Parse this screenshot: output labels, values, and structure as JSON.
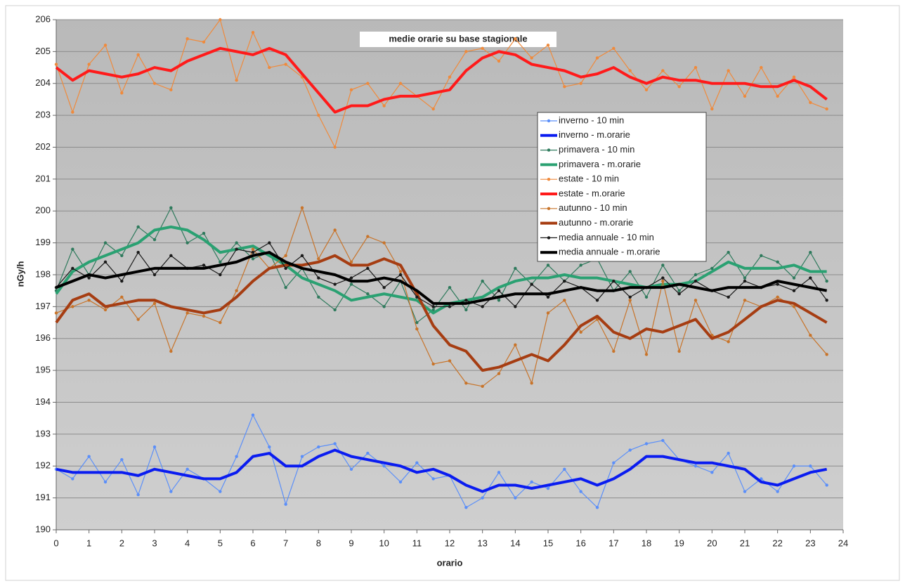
{
  "chart_data": {
    "type": "line",
    "title": "medie orarie su base stagionale",
    "xlabel": "orario",
    "ylabel": "nGy/h",
    "x": [
      0,
      0.5,
      1,
      1.5,
      2,
      2.5,
      3,
      3.5,
      4,
      4.5,
      5,
      5.5,
      6,
      6.5,
      7,
      7.5,
      8,
      8.5,
      9,
      9.5,
      10,
      10.5,
      11,
      11.5,
      12,
      12.5,
      13,
      13.5,
      14,
      14.5,
      15,
      15.5,
      16,
      16.5,
      17,
      17.5,
      18,
      18.5,
      19,
      19.5,
      20,
      20.5,
      21,
      21.5,
      22,
      22.5,
      23,
      23.5
    ],
    "xlim": [
      0,
      24
    ],
    "xticks": [
      0,
      1,
      2,
      3,
      4,
      5,
      6,
      7,
      8,
      9,
      10,
      11,
      12,
      13,
      14,
      15,
      16,
      17,
      18,
      19,
      20,
      21,
      22,
      23,
      24
    ],
    "ylim": [
      190,
      206
    ],
    "yticks": [
      190,
      191,
      192,
      193,
      194,
      195,
      196,
      197,
      198,
      199,
      200,
      201,
      202,
      203,
      204,
      205,
      206
    ],
    "grid": true,
    "series": [
      {
        "name": "inverno - 10 min",
        "color": "#5b8ff9",
        "markers": true,
        "values": [
          191.9,
          191.6,
          192.3,
          191.5,
          192.2,
          191.1,
          192.6,
          191.2,
          191.9,
          191.6,
          191.2,
          192.3,
          193.6,
          192.6,
          190.8,
          192.3,
          192.6,
          192.7,
          191.9,
          192.4,
          192.0,
          191.5,
          192.1,
          191.6,
          191.7,
          190.7,
          191.0,
          191.8,
          191.0,
          191.5,
          191.3,
          191.9,
          191.2,
          190.7,
          192.1,
          192.5,
          192.7,
          192.8,
          192.2,
          192.0,
          191.8,
          192.4,
          191.2,
          191.6,
          191.2,
          192.0,
          192.0,
          191.4
        ]
      },
      {
        "name": "inverno - m.orarie",
        "color": "#0a1cf0",
        "markers": false,
        "values": [
          191.9,
          191.8,
          191.8,
          191.8,
          191.8,
          191.7,
          191.9,
          191.8,
          191.7,
          191.6,
          191.6,
          191.8,
          192.3,
          192.4,
          192.0,
          192.0,
          192.3,
          192.5,
          192.3,
          192.2,
          192.1,
          192.0,
          191.8,
          191.9,
          191.7,
          191.4,
          191.2,
          191.4,
          191.4,
          191.3,
          191.4,
          191.5,
          191.6,
          191.4,
          191.6,
          191.9,
          192.3,
          192.3,
          192.2,
          192.1,
          192.1,
          192.0,
          191.9,
          191.5,
          191.4,
          191.6,
          191.8,
          191.9
        ]
      },
      {
        "name": "primavera - 10 min",
        "color": "#2e7a5c",
        "markers": true,
        "values": [
          197.5,
          198.8,
          198.0,
          199.0,
          198.6,
          199.5,
          199.1,
          200.1,
          199.0,
          199.3,
          198.4,
          199.0,
          198.5,
          198.7,
          197.6,
          198.2,
          197.3,
          196.9,
          197.7,
          197.4,
          197.0,
          197.8,
          196.5,
          196.9,
          197.6,
          196.9,
          197.8,
          197.2,
          198.2,
          197.7,
          198.3,
          197.8,
          198.3,
          198.5,
          197.5,
          198.1,
          197.3,
          198.3,
          197.5,
          198.0,
          198.2,
          198.7,
          197.9,
          198.6,
          198.4,
          197.9,
          198.7,
          197.8
        ]
      },
      {
        "name": "primavera - m.orarie",
        "color": "#2aa172",
        "markers": false,
        "values": [
          197.4,
          198.1,
          198.4,
          198.6,
          198.8,
          199.0,
          199.4,
          199.5,
          199.4,
          199.1,
          198.7,
          198.8,
          198.9,
          198.6,
          198.3,
          197.9,
          197.7,
          197.5,
          197.2,
          197.3,
          197.4,
          197.3,
          197.2,
          196.8,
          197.1,
          197.2,
          197.3,
          197.6,
          197.8,
          197.9,
          197.9,
          198.0,
          197.9,
          197.9,
          197.8,
          197.7,
          197.6,
          197.7,
          197.7,
          197.8,
          198.1,
          198.4,
          198.2,
          198.2,
          198.2,
          198.3,
          198.1,
          198.1
        ]
      },
      {
        "name": "estate - 10 min",
        "color": "#ef8a3c",
        "markers": true,
        "values": [
          204.6,
          203.1,
          204.6,
          205.2,
          203.7,
          204.9,
          204.0,
          203.8,
          205.4,
          205.3,
          206.0,
          204.1,
          205.6,
          204.5,
          204.6,
          204.2,
          203.0,
          202.0,
          203.8,
          204.0,
          203.3,
          204.0,
          203.6,
          203.2,
          204.2,
          205.0,
          205.1,
          204.7,
          205.4,
          204.8,
          205.2,
          203.9,
          204.0,
          204.8,
          205.1,
          204.4,
          203.8,
          204.4,
          203.9,
          204.5,
          203.2,
          204.4,
          203.6,
          204.5,
          203.6,
          204.2,
          203.4,
          203.2
        ]
      },
      {
        "name": "estate - m.orarie",
        "color": "#ff1a1a",
        "markers": false,
        "values": [
          204.5,
          204.1,
          204.4,
          204.3,
          204.2,
          204.3,
          204.5,
          204.4,
          204.7,
          204.9,
          205.1,
          205.0,
          204.9,
          205.1,
          204.9,
          204.3,
          203.7,
          203.1,
          203.3,
          203.3,
          203.5,
          203.6,
          203.6,
          203.7,
          203.8,
          204.4,
          204.8,
          205.0,
          204.9,
          204.6,
          204.5,
          204.4,
          204.2,
          204.3,
          204.5,
          204.2,
          204.0,
          204.2,
          204.1,
          204.1,
          204.0,
          204.0,
          204.0,
          203.9,
          203.9,
          204.1,
          203.9,
          203.5
        ]
      },
      {
        "name": "autunno - 10 min",
        "color": "#c8742a",
        "markers": true,
        "values": [
          196.8,
          197.0,
          197.2,
          196.9,
          197.3,
          196.6,
          197.1,
          195.6,
          196.8,
          196.7,
          196.5,
          197.5,
          198.8,
          198.2,
          198.6,
          200.1,
          198.5,
          199.4,
          198.4,
          199.2,
          199.0,
          198.1,
          196.3,
          195.2,
          195.3,
          194.6,
          194.5,
          194.9,
          195.8,
          194.6,
          196.8,
          197.2,
          196.2,
          196.6,
          195.6,
          197.2,
          195.5,
          197.8,
          195.6,
          197.2,
          196.1,
          195.9,
          197.2,
          197.0,
          197.3,
          197.0,
          196.1,
          195.5
        ]
      },
      {
        "name": "autunno - m.orarie",
        "color": "#a63d12",
        "markers": false,
        "values": [
          196.5,
          197.2,
          197.4,
          197.0,
          197.1,
          197.2,
          197.2,
          197.0,
          196.9,
          196.8,
          196.9,
          197.3,
          197.8,
          198.2,
          198.3,
          198.3,
          198.4,
          198.6,
          198.3,
          198.3,
          198.5,
          198.3,
          197.4,
          196.4,
          195.8,
          195.6,
          195.0,
          195.1,
          195.3,
          195.5,
          195.3,
          195.8,
          196.4,
          196.7,
          196.2,
          196.0,
          196.3,
          196.2,
          196.4,
          196.6,
          196.0,
          196.2,
          196.6,
          197.0,
          197.2,
          197.1,
          196.8,
          196.5
        ]
      },
      {
        "name": "media annuale - 10 min",
        "color": "#1a1a1a",
        "markers": true,
        "values": [
          197.6,
          198.2,
          197.9,
          198.4,
          197.8,
          198.7,
          198.0,
          198.6,
          198.2,
          198.3,
          198.0,
          198.8,
          198.7,
          199.0,
          198.2,
          198.6,
          197.9,
          197.7,
          197.9,
          198.2,
          197.6,
          198.0,
          197.3,
          197.0,
          197.0,
          197.2,
          197.0,
          197.5,
          197.0,
          197.7,
          197.3,
          197.8,
          197.6,
          197.2,
          197.8,
          197.3,
          197.6,
          197.9,
          197.4,
          197.8,
          197.5,
          197.3,
          197.8,
          197.6,
          197.7,
          197.5,
          197.9,
          197.2
        ]
      },
      {
        "name": "media annuale - m.orarie",
        "color": "#000000",
        "markers": false,
        "values": [
          197.6,
          197.8,
          198.0,
          197.9,
          198.0,
          198.1,
          198.2,
          198.2,
          198.2,
          198.2,
          198.3,
          198.4,
          198.6,
          198.7,
          198.4,
          198.2,
          198.1,
          198.0,
          197.8,
          197.8,
          197.9,
          197.8,
          197.5,
          197.1,
          197.1,
          197.1,
          197.2,
          197.3,
          197.4,
          197.4,
          197.4,
          197.5,
          197.6,
          197.5,
          197.5,
          197.6,
          197.6,
          197.6,
          197.7,
          197.6,
          197.5,
          197.6,
          197.6,
          197.6,
          197.8,
          197.7,
          197.6,
          197.5
        ]
      }
    ]
  }
}
